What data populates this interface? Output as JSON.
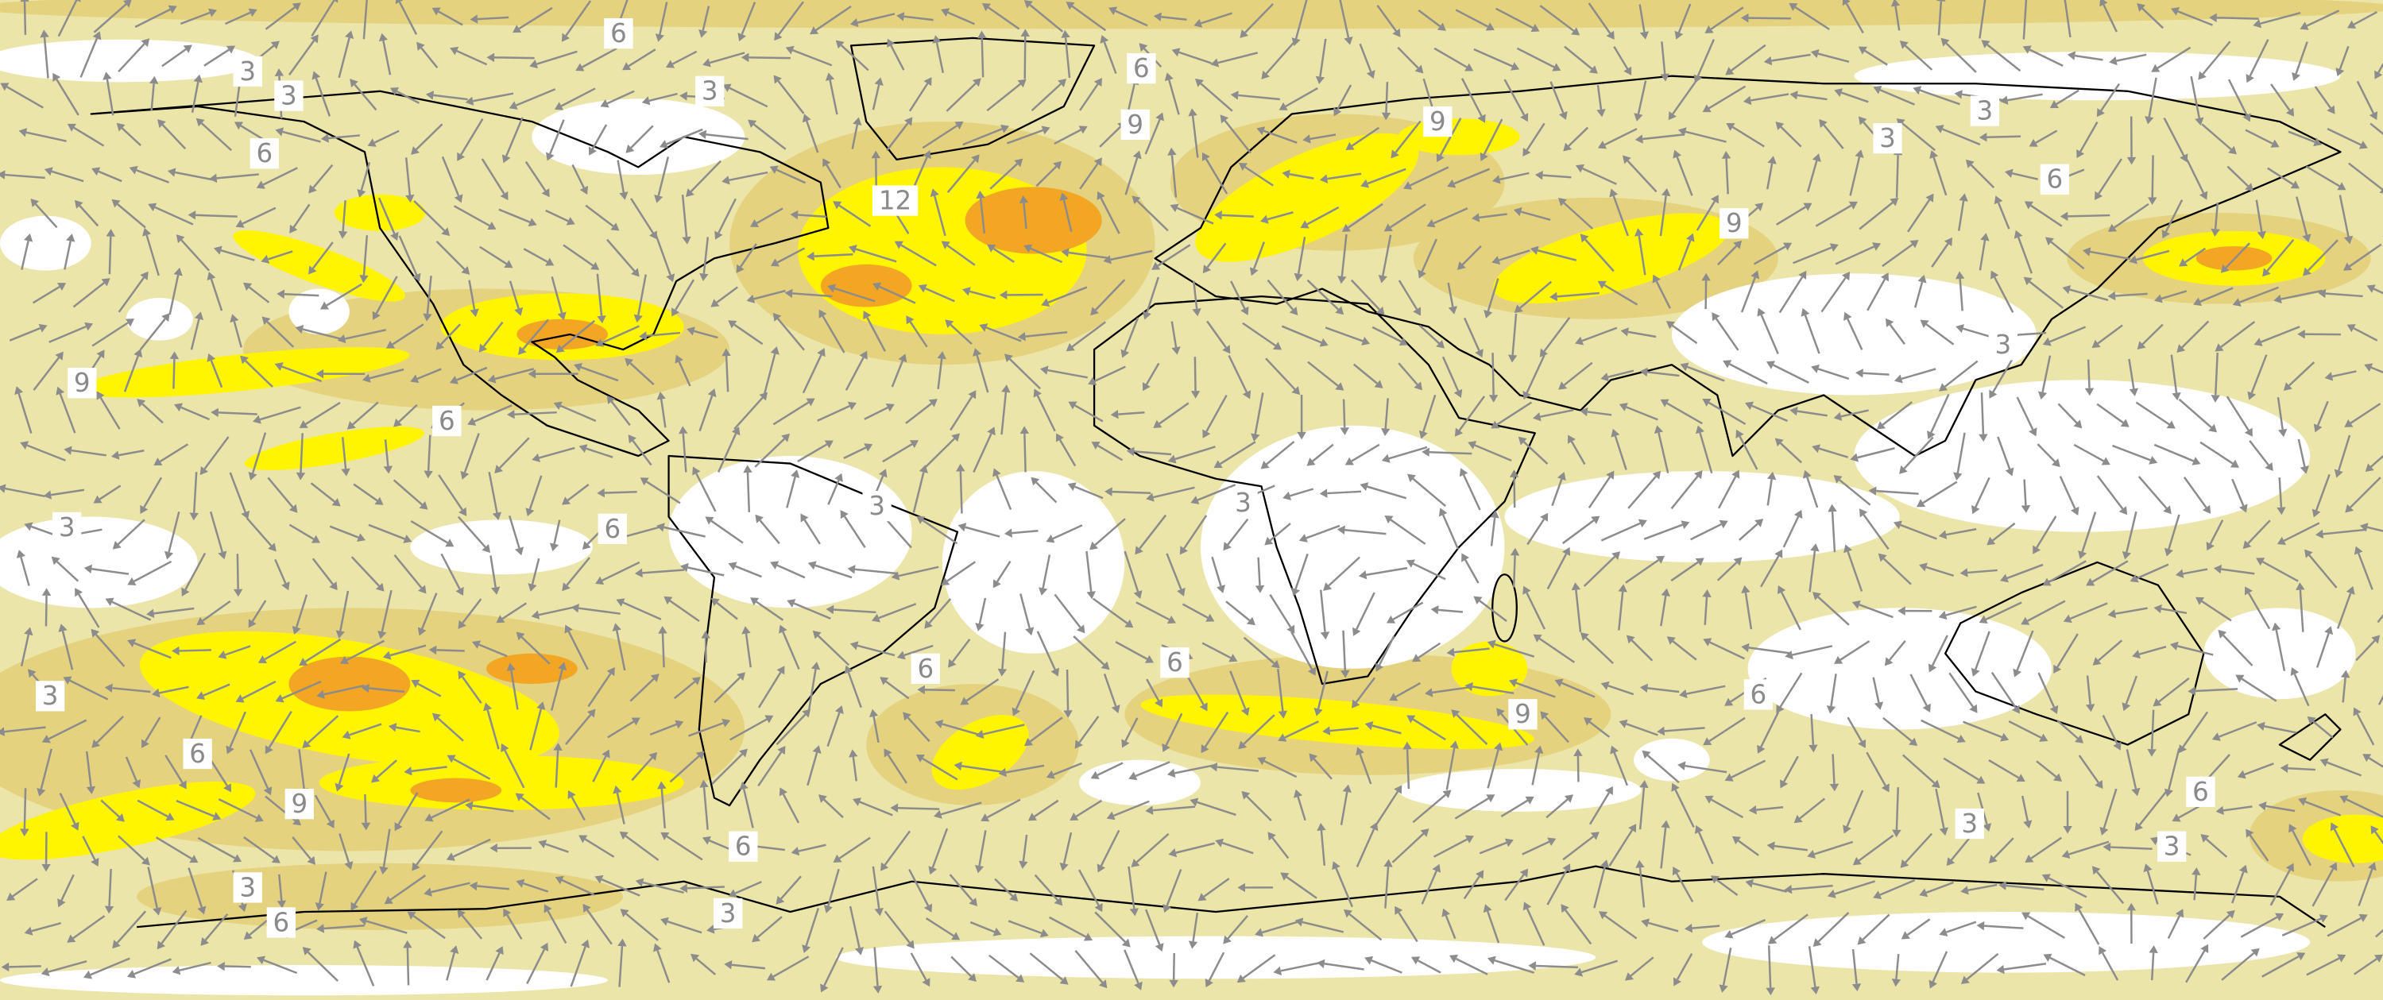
{
  "map": {
    "contour_labels": [
      "6",
      "3",
      "3",
      "3",
      "6",
      "6",
      "9",
      "12",
      "9",
      "3",
      "3",
      "6",
      "9",
      "3",
      "9",
      "6",
      "3",
      "6",
      "3",
      "3",
      "6",
      "6",
      "9",
      "6",
      "3",
      "6",
      "9",
      "6",
      "3",
      "6",
      "3",
      "6",
      "3",
      "3"
    ]
  }
}
